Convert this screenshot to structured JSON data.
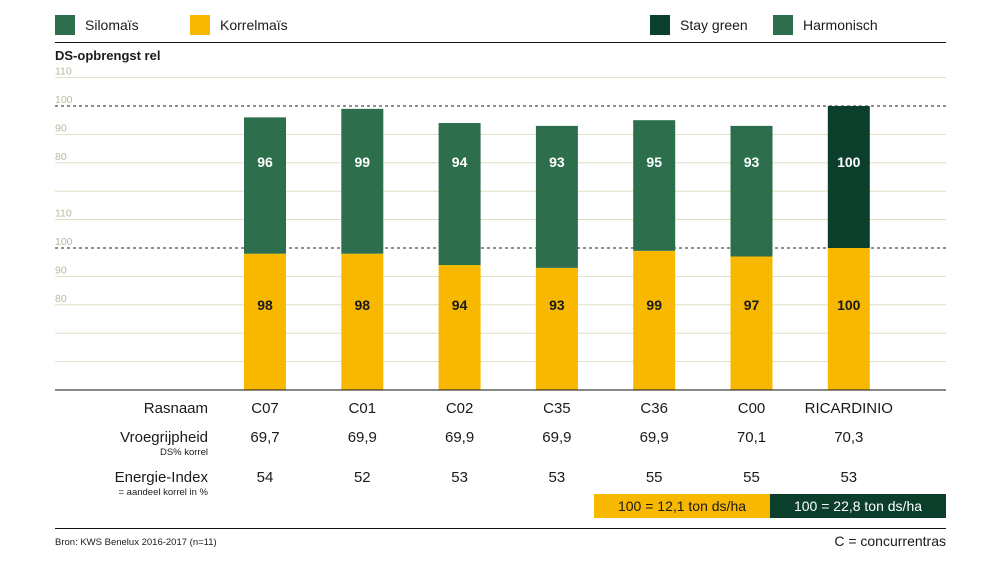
{
  "colors": {
    "silomais": "#2d6e4d",
    "korrelmais": "#f8b800",
    "stay_green": "#0b3f2b",
    "harmonisch": "#2d6e4d",
    "grid": "#d6d9b8",
    "dashed": "#222222"
  },
  "legend": {
    "silomais": "Silomaïs",
    "korrelmais": "Korrelmaïs",
    "stay_green": "Stay green",
    "harmonisch": "Harmonisch"
  },
  "chart_data": {
    "type": "bar",
    "title": "DS-opbrengst rel",
    "categories": [
      "C07",
      "C01",
      "C02",
      "C35",
      "C36",
      "C00",
      "RICARDINIO"
    ],
    "series": [
      {
        "name": "Silomaïs",
        "values": [
          96,
          99,
          94,
          93,
          95,
          93,
          100
        ]
      },
      {
        "name": "Korrelmaïs",
        "values": [
          98,
          98,
          94,
          93,
          99,
          97,
          100
        ]
      }
    ],
    "bar_type": [
      "harmonisch",
      "harmonisch",
      "harmonisch",
      "harmonisch",
      "harmonisch",
      "harmonisch",
      "stay_green"
    ],
    "ytick_labels_upper": [
      "110",
      "100",
      "90",
      "80"
    ],
    "ytick_labels_lower": [
      "110",
      "100",
      "90",
      "80"
    ],
    "ylim": [
      50,
      110
    ]
  },
  "table": {
    "rasnaam_label": "Rasnaam",
    "vroeg_label": "Vroegrijpheid",
    "vroeg_sub": "DS% korrel",
    "energie_label": "Energie-Index",
    "energie_sub": "= aandeel korrel in %",
    "names": [
      "C07",
      "C01",
      "C02",
      "C35",
      "C36",
      "C00",
      "RICARDINIO"
    ],
    "vroegrijpheid": [
      "69,7",
      "69,9",
      "69,9",
      "69,9",
      "69,9",
      "70,1",
      "70,3"
    ],
    "energie": [
      "54",
      "52",
      "53",
      "53",
      "55",
      "55",
      "53"
    ]
  },
  "bases": {
    "korrel": "100 = 12,1 ton ds/ha",
    "silo": "100 = 22,8 ton ds/ha"
  },
  "footer": {
    "source": "Bron: KWS Benelux 2016-2017 (n=11)",
    "note": "C = concurrentras"
  }
}
